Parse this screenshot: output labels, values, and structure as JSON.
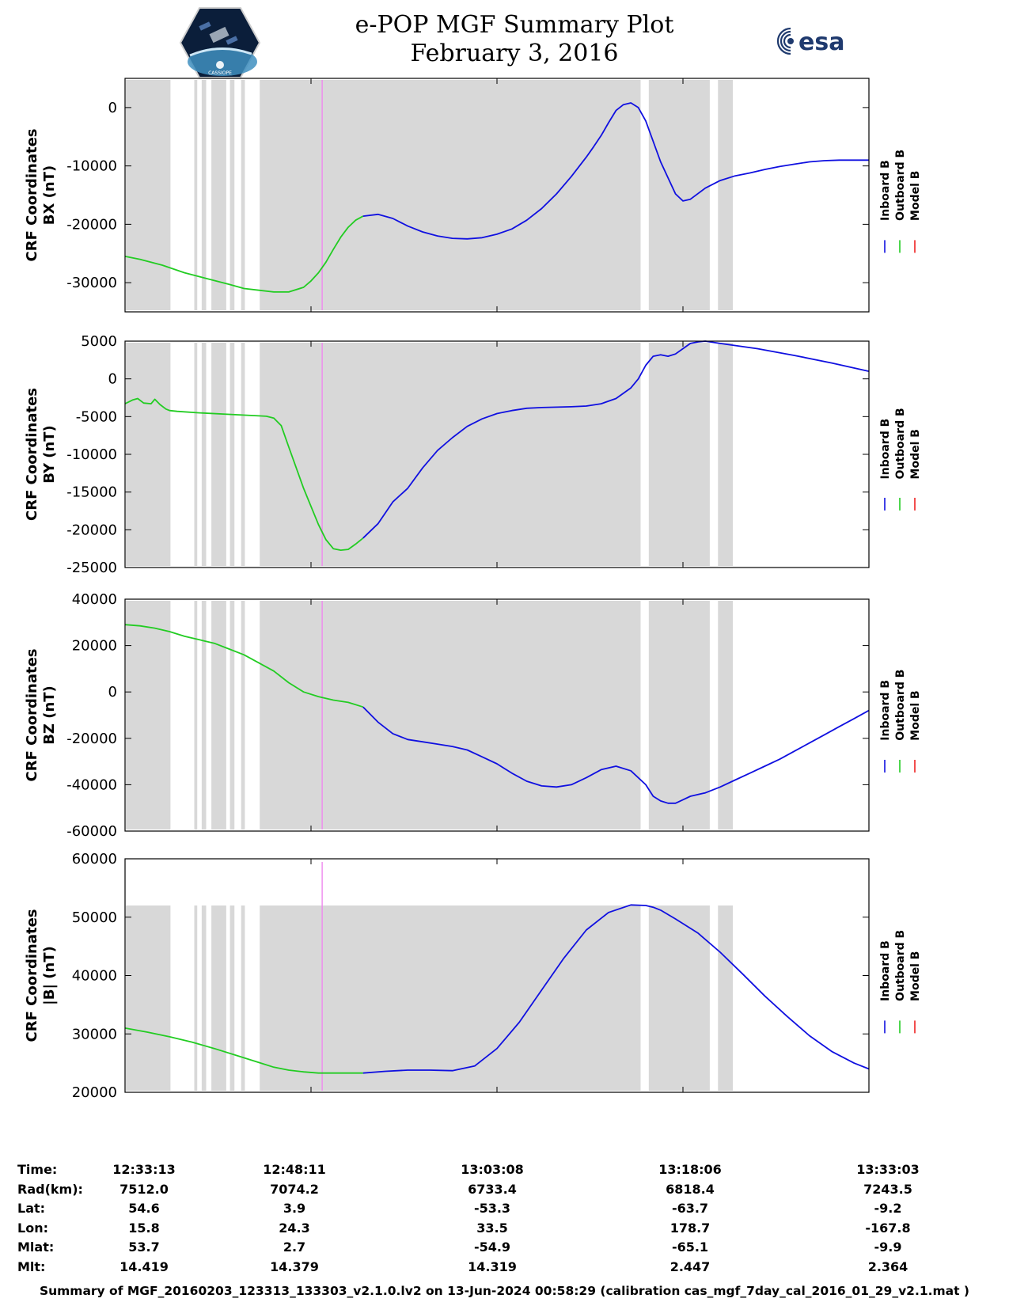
{
  "header": {
    "title": "e-POP MGF Summary Plot",
    "date": "February 3, 2016",
    "logo_left": "CASSIOPE",
    "logo_right": "esa"
  },
  "colors": {
    "inboard": "#1010e0",
    "outboard": "#22cc22",
    "model": "#ee2222",
    "shade": "#d8d8d8",
    "spike": "#ee88ee"
  },
  "legend": {
    "inboard": "Inboard B",
    "outboard": "Outboard B",
    "model": "Model B"
  },
  "chart_data": [
    {
      "type": "line",
      "ylabel": [
        "CRF Coordinates",
        "BX (nT)"
      ],
      "ylim": [
        -35000,
        5000
      ],
      "yticks": [
        {
          "v": 0,
          "label": "0"
        },
        {
          "v": -10000,
          "label": "-10000"
        },
        {
          "v": -20000,
          "label": "-20000"
        },
        {
          "v": -30000,
          "label": "-30000"
        }
      ],
      "shade_top": null,
      "series": [
        {
          "name": "Outboard B",
          "color_key": "outboard",
          "x": [
            0,
            2,
            5,
            8,
            11,
            14,
            16,
            18,
            20,
            22,
            24,
            25,
            26,
            27,
            28,
            29,
            30,
            31,
            32
          ],
          "values": [
            -25500,
            -26000,
            -27000,
            -28300,
            -29300,
            -30300,
            -31000,
            -31300,
            -31600,
            -31600,
            -30800,
            -29700,
            -28300,
            -26500,
            -24300,
            -22200,
            -20500,
            -19300,
            -18600
          ]
        },
        {
          "name": "Inboard B",
          "color_key": "inboard",
          "x": [
            32,
            34,
            36,
            38,
            40,
            42,
            44,
            46,
            48,
            50,
            52,
            54,
            56,
            58,
            60,
            62,
            63,
            64,
            65,
            66,
            67,
            68,
            69,
            70,
            72,
            74,
            75,
            76,
            78,
            80,
            82,
            84,
            86,
            88,
            90,
            92,
            94,
            96,
            98,
            100
          ],
          "values": [
            -18600,
            -18300,
            -19000,
            -20300,
            -21300,
            -22000,
            -22400,
            -22500,
            -22300,
            -21700,
            -20800,
            -19300,
            -17300,
            -14800,
            -11800,
            -8500,
            -6700,
            -4800,
            -2600,
            -500,
            500,
            800,
            0,
            -2300,
            -9300,
            -14800,
            -16000,
            -15700,
            -13800,
            -12500,
            -11700,
            -11200,
            -10600,
            -10100,
            -9700,
            -9300,
            -9100,
            -9000,
            -9000,
            -9000
          ]
        }
      ]
    },
    {
      "type": "line",
      "ylabel": [
        "CRF Coordinates",
        "BY (nT)"
      ],
      "ylim": [
        -25000,
        5000
      ],
      "yticks": [
        {
          "v": 5000,
          "label": "5000"
        },
        {
          "v": 0,
          "label": "0"
        },
        {
          "v": -5000,
          "label": "-5000"
        },
        {
          "v": -10000,
          "label": "-10000"
        },
        {
          "v": -15000,
          "label": "-15000"
        },
        {
          "v": -20000,
          "label": "-20000"
        },
        {
          "v": -25000,
          "label": "-25000"
        }
      ],
      "shade_top": null,
      "series": [
        {
          "name": "Outboard B",
          "color_key": "outboard",
          "x": [
            0,
            1,
            1.7,
            2.5,
            3.5,
            4,
            4.7,
            5.5,
            6,
            7,
            10,
            14,
            18,
            19,
            20,
            21,
            22,
            24,
            26,
            27,
            28,
            29,
            30,
            31,
            32
          ],
          "values": [
            -3300,
            -2800,
            -2600,
            -3200,
            -3300,
            -2700,
            -3400,
            -4000,
            -4200,
            -4300,
            -4500,
            -4700,
            -4900,
            -4950,
            -5200,
            -6200,
            -9000,
            -14500,
            -19300,
            -21300,
            -22500,
            -22700,
            -22600,
            -21900,
            -21100
          ]
        },
        {
          "name": "Inboard B",
          "color_key": "inboard",
          "x": [
            32,
            34,
            36,
            38,
            40,
            42,
            44,
            46,
            48,
            50,
            52,
            54,
            56,
            58,
            60,
            62,
            64,
            66,
            68,
            69,
            70,
            71,
            72,
            73,
            74,
            75,
            76,
            77,
            78,
            80,
            85,
            90,
            95,
            100
          ],
          "values": [
            -21100,
            -19200,
            -16300,
            -14500,
            -11800,
            -9500,
            -7800,
            -6300,
            -5300,
            -4600,
            -4200,
            -3900,
            -3800,
            -3750,
            -3700,
            -3600,
            -3300,
            -2600,
            -1200,
            0,
            1800,
            3000,
            3200,
            3000,
            3300,
            4000,
            4700,
            4900,
            5000,
            4700,
            4000,
            3100,
            2100,
            1000
          ]
        }
      ]
    },
    {
      "type": "line",
      "ylabel": [
        "CRF Coordinates",
        "BZ (nT)"
      ],
      "ylim": [
        -60000,
        40000
      ],
      "yticks": [
        {
          "v": 40000,
          "label": "40000"
        },
        {
          "v": 20000,
          "label": "20000"
        },
        {
          "v": 0,
          "label": "0"
        },
        {
          "v": -20000,
          "label": "-20000"
        },
        {
          "v": -40000,
          "label": "-40000"
        },
        {
          "v": -60000,
          "label": "-60000"
        }
      ],
      "shade_top": null,
      "series": [
        {
          "name": "Outboard B",
          "color_key": "outboard",
          "x": [
            0,
            2,
            4,
            6,
            8,
            10,
            12,
            14,
            16,
            18,
            20,
            22,
            24,
            26,
            28,
            30,
            32
          ],
          "values": [
            29000,
            28500,
            27500,
            26000,
            24000,
            22500,
            21000,
            18500,
            16000,
            12500,
            9000,
            4000,
            0,
            -2000,
            -3500,
            -4500,
            -6500
          ]
        },
        {
          "name": "Inboard B",
          "color_key": "inboard",
          "x": [
            32,
            34,
            36,
            38,
            40,
            42,
            44,
            46,
            48,
            50,
            52,
            54,
            56,
            58,
            60,
            62,
            64,
            66,
            68,
            70,
            71,
            72,
            73,
            74,
            75,
            76,
            78,
            80,
            82,
            84,
            86,
            88,
            90,
            92,
            94,
            96,
            98,
            100
          ],
          "values": [
            -6500,
            -13000,
            -18000,
            -20500,
            -21500,
            -22500,
            -23500,
            -25000,
            -28000,
            -31000,
            -35000,
            -38500,
            -40500,
            -41000,
            -40000,
            -37000,
            -33500,
            -32000,
            -34000,
            -40000,
            -45000,
            -47000,
            -48000,
            -48000,
            -46500,
            -45000,
            -43500,
            -41000,
            -38000,
            -35000,
            -32000,
            -29000,
            -25500,
            -22000,
            -18500,
            -15000,
            -11500,
            -8000
          ]
        }
      ]
    },
    {
      "type": "line",
      "ylabel": [
        "CRF Coordinates",
        "|B| (nT)"
      ],
      "ylim": [
        20000,
        60000
      ],
      "yticks": [
        {
          "v": 60000,
          "label": "60000"
        },
        {
          "v": 50000,
          "label": "50000"
        },
        {
          "v": 40000,
          "label": "40000"
        },
        {
          "v": 30000,
          "label": "30000"
        },
        {
          "v": 20000,
          "label": "20000"
        }
      ],
      "shade_top": 52000,
      "series": [
        {
          "name": "Outboard B",
          "color_key": "outboard",
          "x": [
            0,
            3,
            6,
            9,
            12,
            15,
            18,
            20,
            22,
            24,
            26,
            28,
            30,
            32
          ],
          "values": [
            31000,
            30300,
            29500,
            28600,
            27500,
            26300,
            25100,
            24300,
            23800,
            23500,
            23300,
            23300,
            23300,
            23300
          ]
        },
        {
          "name": "Inboard B",
          "color_key": "inboard",
          "x": [
            32,
            35,
            38,
            41,
            44,
            47,
            50,
            53,
            56,
            59,
            62,
            65,
            68,
            70,
            71,
            72,
            74,
            77,
            80,
            83,
            86,
            89,
            92,
            95,
            98,
            100
          ],
          "values": [
            23300,
            23600,
            23800,
            23800,
            23700,
            24500,
            27500,
            32000,
            37500,
            43000,
            47800,
            50800,
            52100,
            52000,
            51700,
            51200,
            49700,
            47300,
            44000,
            40300,
            36500,
            33000,
            29700,
            27000,
            25000,
            24000
          ]
        }
      ]
    }
  ],
  "shading": {
    "xrange": [
      0,
      100
    ],
    "bands": [
      [
        0,
        6.0
      ],
      [
        9.2,
        9.6
      ],
      [
        10.2,
        10.8
      ],
      [
        11.5,
        13.5
      ],
      [
        14.0,
        14.6
      ],
      [
        15.5,
        16.0
      ],
      [
        18.0,
        69.2
      ],
      [
        70.3,
        78.5
      ],
      [
        79.6,
        81.6
      ]
    ],
    "spike_x": 26.5
  },
  "ephemeris": {
    "rows": [
      {
        "label": "Time:",
        "values": [
          "12:33:13",
          "12:48:11",
          "13:03:08",
          "13:18:06",
          "13:33:03"
        ]
      },
      {
        "label": "Rad(km):",
        "values": [
          "7512.0",
          "7074.2",
          "6733.4",
          "6818.4",
          "7243.5"
        ]
      },
      {
        "label": "Lat:",
        "values": [
          "54.6",
          "3.9",
          "-53.3",
          "-63.7",
          "-9.2"
        ]
      },
      {
        "label": "Lon:",
        "values": [
          "15.8",
          "24.3",
          "33.5",
          "178.7",
          "-167.8"
        ]
      },
      {
        "label": "Mlat:",
        "values": [
          "53.7",
          "2.7",
          "-54.9",
          "-65.1",
          "-9.9"
        ]
      },
      {
        "label": "Mlt:",
        "values": [
          "14.419",
          "14.379",
          "14.319",
          "2.447",
          "2.364"
        ]
      }
    ]
  },
  "footer": "Summary of MGF_20160203_123313_133303_v2.1.0.lv2 on 13-Jun-2024 00:58:29 (calibration cas_mgf_7day_cal_2016_01_29_v2.1.mat )"
}
